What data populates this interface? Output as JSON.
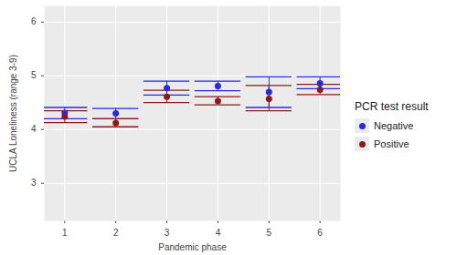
{
  "chart_data": {
    "type": "errorbar",
    "x_label": "Pandemic phase",
    "y_label": "UCLA Loneliness (range 3-9)",
    "x": [
      1,
      2,
      3,
      4,
      5,
      6
    ],
    "xlim": [
      0.6,
      6.4
    ],
    "xticks": [
      1,
      2,
      3,
      4,
      5,
      6
    ],
    "ylim": [
      2.3,
      6.3
    ],
    "yticks": [
      3,
      4,
      5,
      6
    ],
    "grid": true,
    "legend_title": "PCR test result",
    "legend": "right",
    "marker": "circle",
    "series": [
      {
        "name": "Negative",
        "color": "#2727e6",
        "values": [
          4.31,
          4.3,
          4.77,
          4.81,
          4.7,
          4.86
        ],
        "lower": [
          4.2,
          4.2,
          4.64,
          4.72,
          4.41,
          4.76
        ],
        "upper": [
          4.41,
          4.39,
          4.9,
          4.9,
          4.98,
          4.98
        ]
      },
      {
        "name": "Positive",
        "color": "#8b1a1a",
        "values": [
          4.24,
          4.12,
          4.61,
          4.53,
          4.57,
          4.74
        ],
        "lower": [
          4.13,
          4.05,
          4.5,
          4.46,
          4.35,
          4.65
        ],
        "upper": [
          4.35,
          4.2,
          4.73,
          4.61,
          4.82,
          4.84
        ]
      }
    ]
  }
}
